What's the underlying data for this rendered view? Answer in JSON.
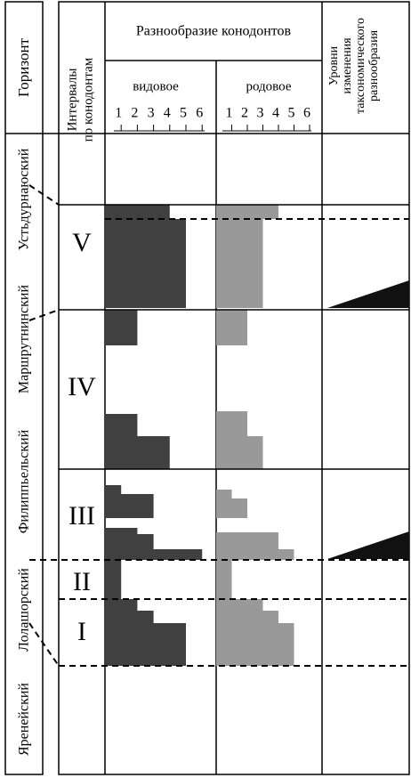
{
  "header": {
    "horizon": "Горизонт",
    "intervals": [
      "Интервалы",
      "по конодонтам"
    ],
    "diversity": "Разнообразие  конодонтов",
    "species": "видовое",
    "genus": "родовое",
    "scale": [
      1,
      2,
      3,
      4,
      5,
      6
    ],
    "levels": [
      "Уровни",
      "изменения",
      "таксономического",
      "разнообразия"
    ]
  },
  "horizons": [
    "Устьдурнаюский",
    "Маршрутнинский",
    "Филиппьельский",
    "Лолашорский",
    "Яренейский"
  ],
  "intervals": [
    {
      "label": "V",
      "species": [
        4,
        5
      ],
      "genus": [
        4,
        3
      ]
    },
    {
      "label": "IV",
      "species": [
        2,
        2,
        4
      ],
      "genus": [
        2,
        2,
        3
      ]
    },
    {
      "label": "III",
      "species": [
        1,
        3,
        2,
        3,
        6
      ],
      "genus": [
        1,
        2,
        4,
        5
      ]
    },
    {
      "label": "II",
      "species": [
        1
      ],
      "genus": [
        1
      ]
    },
    {
      "label": "I",
      "species": [
        2,
        3,
        5
      ],
      "genus": [
        3,
        4,
        5
      ]
    }
  ]
}
